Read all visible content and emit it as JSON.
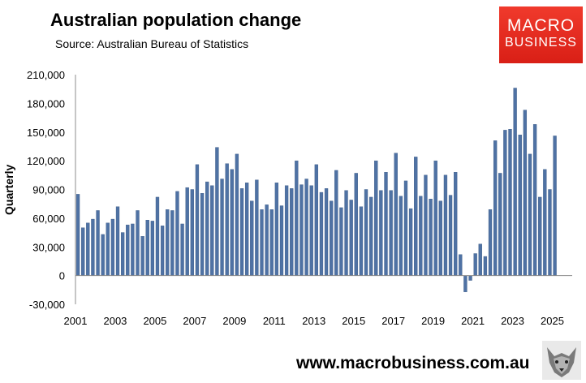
{
  "header": {
    "title": "Australian population change",
    "source": "Source: Australian Bureau of Statistics"
  },
  "logo": {
    "line1": "MACRO",
    "line2": "BUSINESS"
  },
  "footer": {
    "url": "www.macrobusiness.com.au",
    "mascot_icon": "wolf-icon"
  },
  "colors": {
    "bar": "#4f72a4",
    "bar_edge": "#3b5a86",
    "axis": "#8c8c8c",
    "logo_bg": "#e8271c"
  },
  "chart_data": {
    "type": "bar",
    "title": "Australian population change",
    "xlabel": "",
    "ylabel": "Quarterly",
    "ylim": [
      -30000,
      210000
    ],
    "yticks": [
      -30000,
      0,
      30000,
      60000,
      90000,
      120000,
      150000,
      180000,
      210000
    ],
    "ytick_labels": [
      "-30,000",
      "0",
      "30,000",
      "60,000",
      "90,000",
      "120,000",
      "150,000",
      "180,000",
      "210,000"
    ],
    "xtick_labels": [
      "2001",
      "2003",
      "2005",
      "2007",
      "2009",
      "2011",
      "2013",
      "2015",
      "2017",
      "2019",
      "2021",
      "2023",
      "2025"
    ],
    "start": "2001 Q1",
    "frequency": "quarterly",
    "values": [
      85000,
      50000,
      55000,
      59000,
      68000,
      43000,
      55000,
      59000,
      72000,
      45000,
      53000,
      54000,
      68000,
      41000,
      58000,
      57000,
      82000,
      52000,
      69000,
      68000,
      88000,
      54000,
      92000,
      90000,
      116000,
      86000,
      98000,
      94000,
      134000,
      101000,
      117000,
      111000,
      127000,
      91000,
      97000,
      78000,
      100000,
      69000,
      74000,
      69000,
      97000,
      73000,
      94000,
      91000,
      120000,
      95000,
      101000,
      94000,
      116000,
      87000,
      91000,
      78000,
      110000,
      71000,
      89000,
      79000,
      107000,
      72000,
      90000,
      82000,
      120000,
      89000,
      108000,
      89000,
      128000,
      83000,
      99000,
      70000,
      124000,
      83000,
      105000,
      80000,
      120000,
      78000,
      105000,
      84000,
      108000,
      22000,
      -17000,
      -5000,
      23000,
      33000,
      20000,
      69000,
      141000,
      107000,
      152000,
      153000,
      196000,
      147000,
      173000,
      127000,
      158000,
      82000,
      111000,
      90000,
      146000
    ]
  }
}
